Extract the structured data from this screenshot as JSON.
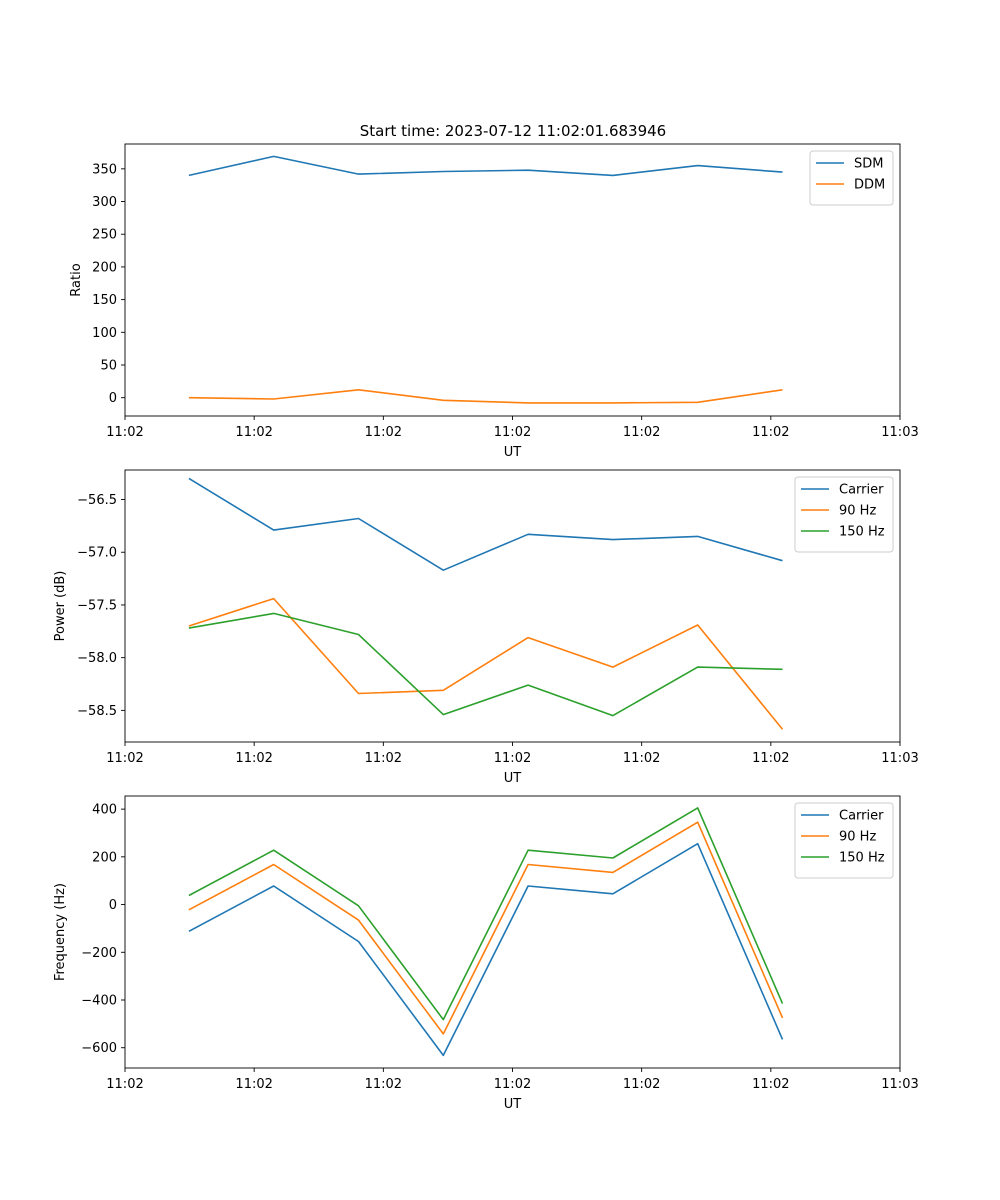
{
  "figure_title": "Start time: 2023-07-12 11:02:01.683946",
  "colors": {
    "c0": "#1f77b4",
    "c1": "#ff7f0e",
    "c2": "#2ca02c"
  },
  "chart_data": [
    {
      "type": "line",
      "xlabel": "UT",
      "ylabel": "Ratio",
      "x": [
        0.5,
        1.163,
        1.826,
        2.489,
        3.152,
        3.815,
        4.478,
        5.141
      ],
      "xlim": [
        0,
        6.06
      ],
      "xticks": [
        0,
        1.01,
        2.02,
        3.03,
        4.04,
        5.05,
        6.06
      ],
      "xtick_labels": [
        "11:02",
        "11:02",
        "11:02",
        "11:02",
        "11:02",
        "11:02",
        "11:03"
      ],
      "ylim": [
        -28,
        388
      ],
      "yticks": [
        0,
        50,
        100,
        150,
        200,
        250,
        300,
        350
      ],
      "ytick_labels": [
        "0",
        "50",
        "100",
        "150",
        "200",
        "250",
        "300",
        "350"
      ],
      "legend_position": "upper-right",
      "series": [
        {
          "name": "SDM",
          "color": "c0",
          "values": [
            340,
            369,
            342,
            346,
            348,
            340,
            355,
            345
          ]
        },
        {
          "name": "DDM",
          "color": "c1",
          "values": [
            0,
            -2,
            12,
            -4,
            -8,
            -8,
            -7,
            12
          ]
        }
      ]
    },
    {
      "type": "line",
      "xlabel": "UT",
      "ylabel": "Power (dB)",
      "x": [
        0.5,
        1.163,
        1.826,
        2.489,
        3.152,
        3.815,
        4.478,
        5.141
      ],
      "xlim": [
        0,
        6.06
      ],
      "xticks": [
        0,
        1.01,
        2.02,
        3.03,
        4.04,
        5.05,
        6.06
      ],
      "xtick_labels": [
        "11:02",
        "11:02",
        "11:02",
        "11:02",
        "11:02",
        "11:02",
        "11:03"
      ],
      "ylim": [
        -58.8,
        -56.22
      ],
      "yticks": [
        -58.5,
        -58.0,
        -57.5,
        -57.0,
        -56.5
      ],
      "ytick_labels": [
        "−58.5",
        "−58.0",
        "−57.5",
        "−57.0",
        "−56.5"
      ],
      "legend_position": "upper-right",
      "series": [
        {
          "name": "Carrier",
          "color": "c0",
          "values": [
            -56.3,
            -56.79,
            -56.68,
            -57.17,
            -56.83,
            -56.88,
            -56.85,
            -57.08
          ]
        },
        {
          "name": "90 Hz",
          "color": "c1",
          "values": [
            -57.7,
            -57.44,
            -58.34,
            -58.31,
            -57.81,
            -58.09,
            -57.69,
            -58.68
          ]
        },
        {
          "name": "150 Hz",
          "color": "c2",
          "values": [
            -57.72,
            -57.58,
            -57.78,
            -58.54,
            -58.26,
            -58.55,
            -58.09,
            -58.11
          ]
        }
      ]
    },
    {
      "type": "line",
      "xlabel": "UT",
      "ylabel": "Frequency (Hz)",
      "x": [
        0.5,
        1.163,
        1.826,
        2.489,
        3.152,
        3.815,
        4.478,
        5.141
      ],
      "xlim": [
        0,
        6.06
      ],
      "xticks": [
        0,
        1.01,
        2.02,
        3.03,
        4.04,
        5.05,
        6.06
      ],
      "xtick_labels": [
        "11:02",
        "11:02",
        "11:02",
        "11:02",
        "11:02",
        "11:02",
        "11:03"
      ],
      "ylim": [
        -685,
        455
      ],
      "yticks": [
        -600,
        -400,
        -200,
        0,
        200,
        400
      ],
      "ytick_labels": [
        "−600",
        "−400",
        "−200",
        "0",
        "200",
        "400"
      ],
      "legend_position": "upper-right",
      "series": [
        {
          "name": "Carrier",
          "color": "c0",
          "values": [
            -112,
            78,
            -155,
            -632,
            78,
            45,
            255,
            -565
          ]
        },
        {
          "name": "90 Hz",
          "color": "c1",
          "values": [
            -22,
            168,
            -65,
            -542,
            168,
            135,
            345,
            -475
          ]
        },
        {
          "name": "150 Hz",
          "color": "c2",
          "values": [
            38,
            228,
            -5,
            -482,
            228,
            195,
            405,
            -415
          ]
        }
      ]
    }
  ]
}
